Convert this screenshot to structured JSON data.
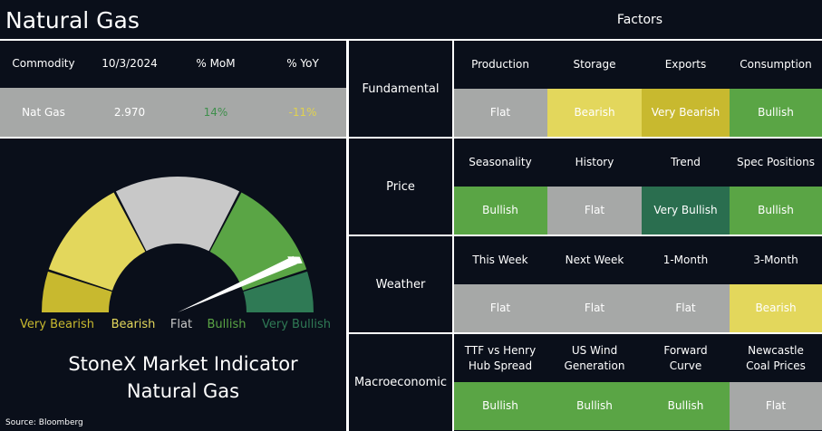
{
  "header": {
    "title": "Natural Gas",
    "factors_title": "Factors"
  },
  "summary": {
    "headers": [
      "Commodity",
      "10/3/2024",
      "% MoM",
      "% YoY"
    ],
    "row": [
      {
        "text": "Nat Gas",
        "color": "#ffffff"
      },
      {
        "text": "2.970",
        "color": "#ffffff"
      },
      {
        "text": "14%",
        "color": "#3f8f4c"
      },
      {
        "text": "-11%",
        "color": "#e0d24f"
      }
    ]
  },
  "factors": {
    "groups": [
      {
        "name": "Fundamental",
        "items": [
          {
            "label": "Production",
            "status": "Flat",
            "color": "#a6a8a7"
          },
          {
            "label": "Storage",
            "status": "Bearish",
            "color": "#e3d75c"
          },
          {
            "label": "Exports",
            "status": "Very Bearish",
            "color": "#c8b92f"
          },
          {
            "label": "Consumption",
            "status": "Bullish",
            "color": "#5aa545"
          }
        ]
      },
      {
        "name": "Price",
        "items": [
          {
            "label": "Seasonality",
            "status": "Bullish",
            "color": "#5aa545"
          },
          {
            "label": "History",
            "status": "Flat",
            "color": "#a6a8a7"
          },
          {
            "label": "Trend",
            "status": "Very Bullish",
            "color": "#2a6e4f"
          },
          {
            "label": "Spec Positions",
            "status": "Bullish",
            "color": "#5aa545"
          }
        ]
      },
      {
        "name": "Weather",
        "items": [
          {
            "label": "This Week",
            "status": "Flat",
            "color": "#a6a8a7"
          },
          {
            "label": "Next Week",
            "status": "Flat",
            "color": "#a6a8a7"
          },
          {
            "label": "1-Month",
            "status": "Flat",
            "color": "#a6a8a7"
          },
          {
            "label": "3-Month",
            "status": "Bearish",
            "color": "#e3d75c"
          }
        ]
      },
      {
        "name": "Macroeconomic",
        "items": [
          {
            "label": "TTF vs Henry Hub Spread",
            "status": "Bullish",
            "color": "#5aa545"
          },
          {
            "label": "US Wind Generation",
            "status": "Bullish",
            "color": "#5aa545"
          },
          {
            "label": "Forward Curve",
            "status": "Bullish",
            "color": "#5aa545"
          },
          {
            "label": "Newcastle Coal Prices",
            "status": "Flat",
            "color": "#a6a8a7"
          }
        ]
      }
    ]
  },
  "gauge": {
    "labels": [
      {
        "text": "Very Bearish",
        "color": "#c8b92f"
      },
      {
        "text": "Bearish",
        "color": "#e3d75c"
      },
      {
        "text": "Flat",
        "color": "#c8c8c8"
      },
      {
        "text": "Bullish",
        "color": "#5aa545"
      },
      {
        "text": "Very Bullish",
        "color": "#2f7a55"
      }
    ],
    "caption": [
      "StoneX Market Indicator",
      "Natural Gas"
    ],
    "source": "Source: Bloomberg"
  }
}
